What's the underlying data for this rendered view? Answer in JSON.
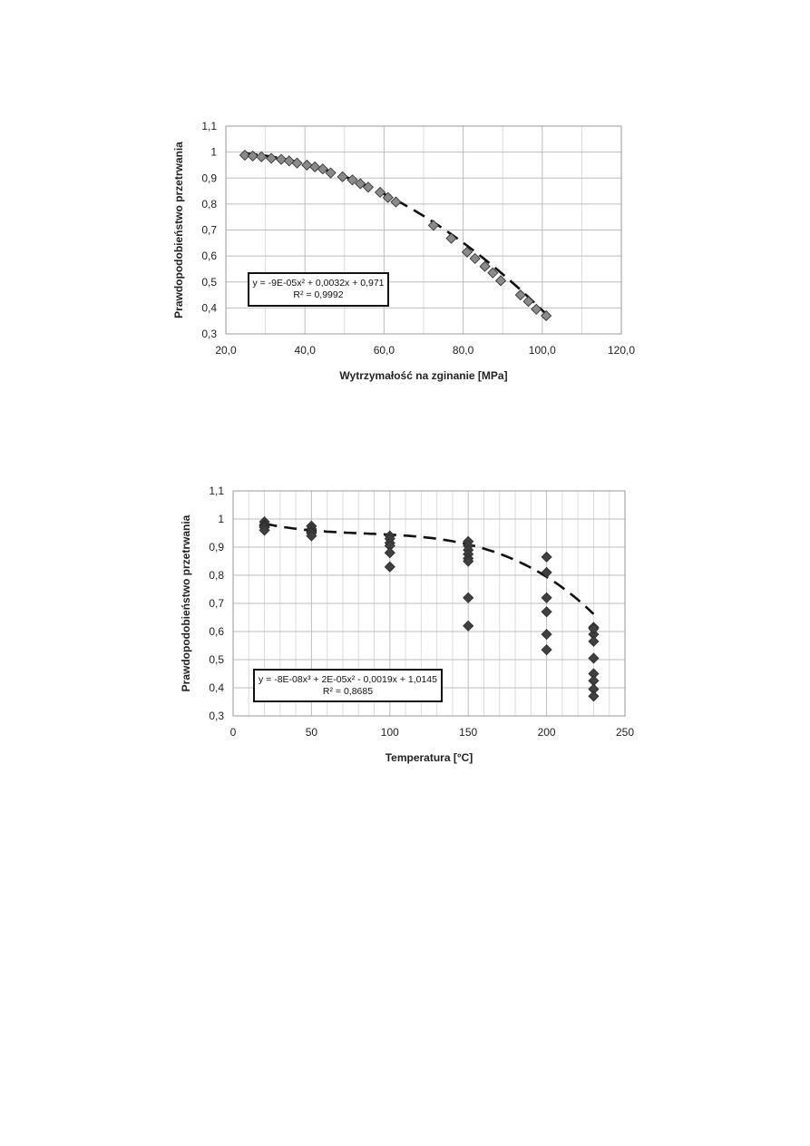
{
  "chart_data": [
    {
      "type": "scatter",
      "xlabel": "Wytrzymałość na zginanie  [MPa]",
      "ylabel": "Prawdopodobieństwo przetrwania",
      "xlim": [
        20,
        120
      ],
      "ylim": [
        0.3,
        1.1
      ],
      "xticks": [
        "20,0",
        "40,0",
        "60,0",
        "80,0",
        "100,0",
        "120,0"
      ],
      "yticks": [
        "0,3",
        "0,4",
        "0,5",
        "0,6",
        "0,7",
        "0,8",
        "0,9",
        "1",
        "1,1"
      ],
      "grid": true,
      "marker": "diamond",
      "marker_color": "#8a8a8a",
      "trendline": "polynomial-2",
      "trendline_coefficients": [
        -9e-05,
        0.0032,
        0.971
      ],
      "annotation": [
        "y = -9E-05x² + 0,0032x + 0,971",
        "R² = 0,9992"
      ],
      "series": [
        {
          "x": [
            24.8,
            26.8,
            29.0,
            31.5,
            34.0,
            36.0,
            38.0,
            40.5,
            42.5,
            44.5,
            46.5,
            49.5,
            52.0,
            54.0,
            56.0,
            59.0,
            61.0,
            63.0,
            72.5,
            77.0,
            81.0,
            83.0,
            85.5,
            87.5,
            89.5,
            94.5,
            96.5,
            98.5,
            101.0
          ],
          "y": [
            0.988,
            0.985,
            0.982,
            0.976,
            0.972,
            0.966,
            0.958,
            0.95,
            0.943,
            0.935,
            0.92,
            0.905,
            0.893,
            0.878,
            0.865,
            0.845,
            0.825,
            0.808,
            0.718,
            0.668,
            0.615,
            0.59,
            0.56,
            0.535,
            0.505,
            0.45,
            0.425,
            0.395,
            0.37
          ]
        }
      ]
    },
    {
      "type": "scatter",
      "xlabel": "Temperatura [°C]",
      "ylabel": "Prawdopodobieństwo przetrwania",
      "xlim": [
        0,
        250
      ],
      "ylim": [
        0.3,
        1.1
      ],
      "xticks": [
        "0",
        "50",
        "100",
        "150",
        "200",
        "250"
      ],
      "yticks": [
        "0,3",
        "0,4",
        "0,5",
        "0,6",
        "0,7",
        "0,8",
        "0,9",
        "1",
        "1,1"
      ],
      "grid": true,
      "marker": "diamond",
      "marker_color": "#404040",
      "trendline": "polynomial-3",
      "trendline_coefficients": [
        -8e-08,
        2e-05,
        -0.0019,
        1.0145
      ],
      "annotation": [
        "y = -8E-08x³ + 2E-05x² - 0,0019x + 1,0145",
        "R² = 0,8685"
      ],
      "series": [
        {
          "x": [
            20,
            20,
            20,
            20,
            20,
            50,
            50,
            50,
            50,
            50,
            100,
            100,
            100,
            100,
            100,
            100,
            150,
            150,
            150,
            150,
            150,
            150,
            150,
            150,
            200,
            200,
            200,
            200,
            200,
            200,
            230,
            230,
            230,
            230,
            230,
            230,
            230,
            230,
            230
          ],
          "y": [
            0.99,
            0.98,
            0.975,
            0.97,
            0.96,
            0.975,
            0.965,
            0.955,
            0.95,
            0.94,
            0.94,
            0.93,
            0.915,
            0.905,
            0.88,
            0.83,
            0.92,
            0.905,
            0.89,
            0.875,
            0.86,
            0.85,
            0.72,
            0.62,
            0.865,
            0.81,
            0.72,
            0.67,
            0.59,
            0.535,
            0.615,
            0.59,
            0.565,
            0.505,
            0.45,
            0.425,
            0.395,
            0.37,
            0.61
          ]
        }
      ]
    }
  ]
}
